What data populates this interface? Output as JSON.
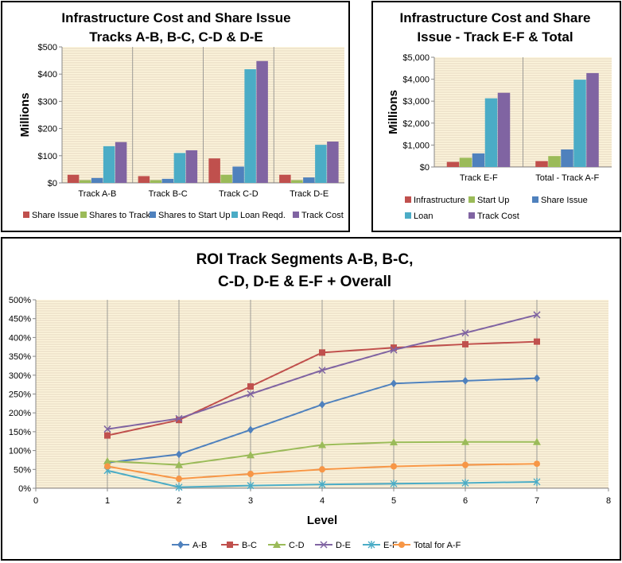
{
  "colors": {
    "plot_bg": "#fdf5dc",
    "grid": "#c9b6a0",
    "series": {
      "red": "#c0504d",
      "green": "#9bbb59",
      "blue": "#4f81bd",
      "teal": "#4bacc6",
      "purple": "#8064a2",
      "orange": "#f79646",
      "cyan": "#4bacc6"
    }
  },
  "chart_data": [
    {
      "type": "bar",
      "title": "Infrastructure Cost and Share Issue Tracks A-B, B-C, C-D & D-E",
      "title_lines": [
        "Infrastructure Cost and Share Issue",
        "Tracks A-B, B-C, C-D & D-E"
      ],
      "ylabel": "Millions",
      "ylim": [
        0,
        500
      ],
      "yticks": [
        0,
        100,
        200,
        300,
        400,
        500
      ],
      "ytick_labels": [
        "$0",
        "$100",
        "$200",
        "$300",
        "$400",
        "$500"
      ],
      "categories": [
        "Track A-B",
        "Track B-C",
        "Track C-D",
        "Track D-E"
      ],
      "series": [
        {
          "name": "Share Issue",
          "color": "#c0504d",
          "values": [
            30,
            25,
            90,
            30
          ]
        },
        {
          "name": "Shares to Track",
          "color": "#9bbb59",
          "values": [
            10,
            10,
            30,
            10
          ]
        },
        {
          "name": "Shares to Start Up",
          "color": "#4f81bd",
          "values": [
            18,
            15,
            60,
            20
          ]
        },
        {
          "name": "Loan Reqd.",
          "color": "#4bacc6",
          "values": [
            135,
            110,
            418,
            140
          ]
        },
        {
          "name": "Track Cost",
          "color": "#8064a2",
          "values": [
            150,
            120,
            448,
            152
          ]
        }
      ],
      "legend": "bottom"
    },
    {
      "type": "bar",
      "title": "Infrastructure Cost and Share Issue - Track E-F & Total",
      "title_lines": [
        "Infrastructure Cost and Share",
        "Issue - Track E-F & Total"
      ],
      "ylabel": "Millions",
      "ylim": [
        0,
        5000
      ],
      "yticks": [
        0,
        1000,
        2000,
        3000,
        4000,
        5000
      ],
      "ytick_labels": [
        "$0",
        "$1,000",
        "$2,000",
        "$3,000",
        "$4,000",
        "$5,000"
      ],
      "categories": [
        "Track E-F",
        "Total - Track A-F"
      ],
      "series": [
        {
          "name": "Infrastructure",
          "color": "#c0504d",
          "values": [
            230,
            270
          ]
        },
        {
          "name": "Start Up",
          "color": "#9bbb59",
          "values": [
            420,
            500
          ]
        },
        {
          "name": "Share Issue",
          "color": "#4f81bd",
          "values": [
            620,
            800
          ]
        },
        {
          "name": "Loan",
          "color": "#4bacc6",
          "values": [
            3130,
            3980
          ]
        },
        {
          "name": "Track Cost",
          "color": "#8064a2",
          "values": [
            3380,
            4280
          ]
        }
      ],
      "legend": "bottom"
    },
    {
      "type": "line",
      "title": "ROI Track Segments A-B, B-C, C-D, D-E & E-F + Overall",
      "title_lines": [
        "ROI Track  Segments A-B, B-C,",
        "C-D, D-E & E-F + Overall"
      ],
      "xlabel": "Level",
      "xlim": [
        0,
        8
      ],
      "xticks": [
        0,
        1,
        2,
        3,
        4,
        5,
        6,
        7,
        8
      ],
      "ylim": [
        0,
        500
      ],
      "yticks": [
        0,
        50,
        100,
        150,
        200,
        250,
        300,
        350,
        400,
        450,
        500
      ],
      "ytick_labels": [
        "0%",
        "50%",
        "100%",
        "150%",
        "200%",
        "250%",
        "300%",
        "350%",
        "400%",
        "450%",
        "500%"
      ],
      "x": [
        1,
        2,
        3,
        4,
        5,
        6,
        7
      ],
      "series": [
        {
          "name": "A-B",
          "color": "#4f81bd",
          "marker": "diamond",
          "values": [
            68,
            90,
            155,
            222,
            278,
            285,
            292
          ]
        },
        {
          "name": "B-C",
          "color": "#c0504d",
          "marker": "square",
          "values": [
            140,
            181,
            270,
            360,
            373,
            382,
            389
          ]
        },
        {
          "name": "C-D",
          "color": "#9bbb59",
          "marker": "triangle",
          "values": [
            72,
            62,
            88,
            115,
            122,
            123,
            123
          ]
        },
        {
          "name": "D-E",
          "color": "#8064a2",
          "marker": "x",
          "values": [
            157,
            185,
            250,
            313,
            367,
            412,
            460
          ]
        },
        {
          "name": "E-F",
          "color": "#4bacc6",
          "marker": "star",
          "values": [
            47,
            3,
            7,
            10,
            12,
            14,
            17
          ]
        },
        {
          "name": "Total for A-F",
          "color": "#f79646",
          "marker": "circle",
          "values": [
            58,
            25,
            38,
            50,
            58,
            62,
            65
          ]
        }
      ],
      "legend": "bottom"
    }
  ]
}
